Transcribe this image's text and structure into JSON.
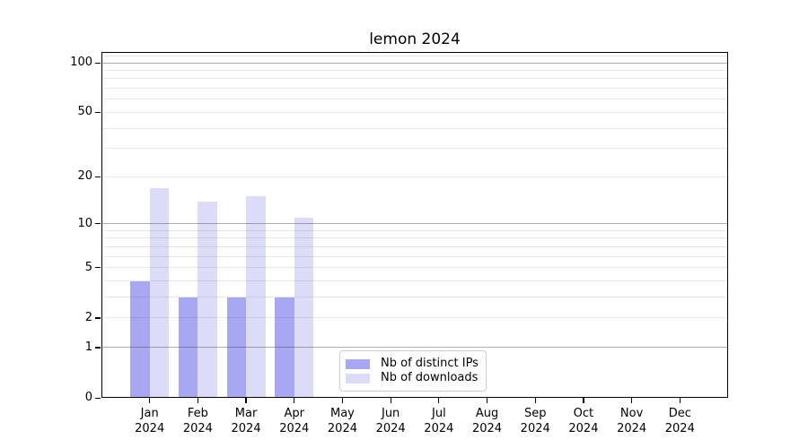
{
  "title": "lemon 2024",
  "chart_data": {
    "type": "bar",
    "title": "lemon 2024",
    "categories": [
      "Jan 2024",
      "Feb 2024",
      "Mar 2024",
      "Apr 2024",
      "May 2024",
      "Jun 2024",
      "Jul 2024",
      "Aug 2024",
      "Sep 2024",
      "Oct 2024",
      "Nov 2024",
      "Dec 2024"
    ],
    "x_tick_months": [
      "Jan",
      "Feb",
      "Mar",
      "Apr",
      "May",
      "Jun",
      "Jul",
      "Aug",
      "Sep",
      "Oct",
      "Nov",
      "Dec"
    ],
    "x_tick_year": "2024",
    "series": [
      {
        "name": "Nb of distinct IPs",
        "color": "#a8a8f2",
        "values": [
          4,
          3,
          3,
          3,
          0,
          0,
          0,
          0,
          0,
          0,
          0,
          0
        ]
      },
      {
        "name": "Nb of downloads",
        "color": "#dcdcf8",
        "values": [
          17,
          14,
          15,
          11,
          0,
          0,
          0,
          0,
          0,
          0,
          0,
          0
        ]
      }
    ],
    "xlabel": "",
    "ylabel": "",
    "y_scale": "log10(1+y)",
    "y_ticks": [
      0,
      1,
      2,
      5,
      10,
      20,
      50,
      100
    ],
    "y_major_gridlines": [
      1,
      10,
      100
    ],
    "y_minor_gridlines": [
      2,
      3,
      4,
      5,
      6,
      7,
      8,
      9,
      20,
      30,
      40,
      50,
      60,
      70,
      80,
      90,
      110
    ],
    "ylim": [
      0,
      115
    ],
    "grid": true,
    "legend_position": "lower center, inside axes"
  },
  "colors": {
    "background": "#ffffff",
    "bar_distinct_ips": "#a8a8f2",
    "bar_downloads": "#dcdcf8",
    "axis": "#000000",
    "legend_border": "#cccccc"
  }
}
